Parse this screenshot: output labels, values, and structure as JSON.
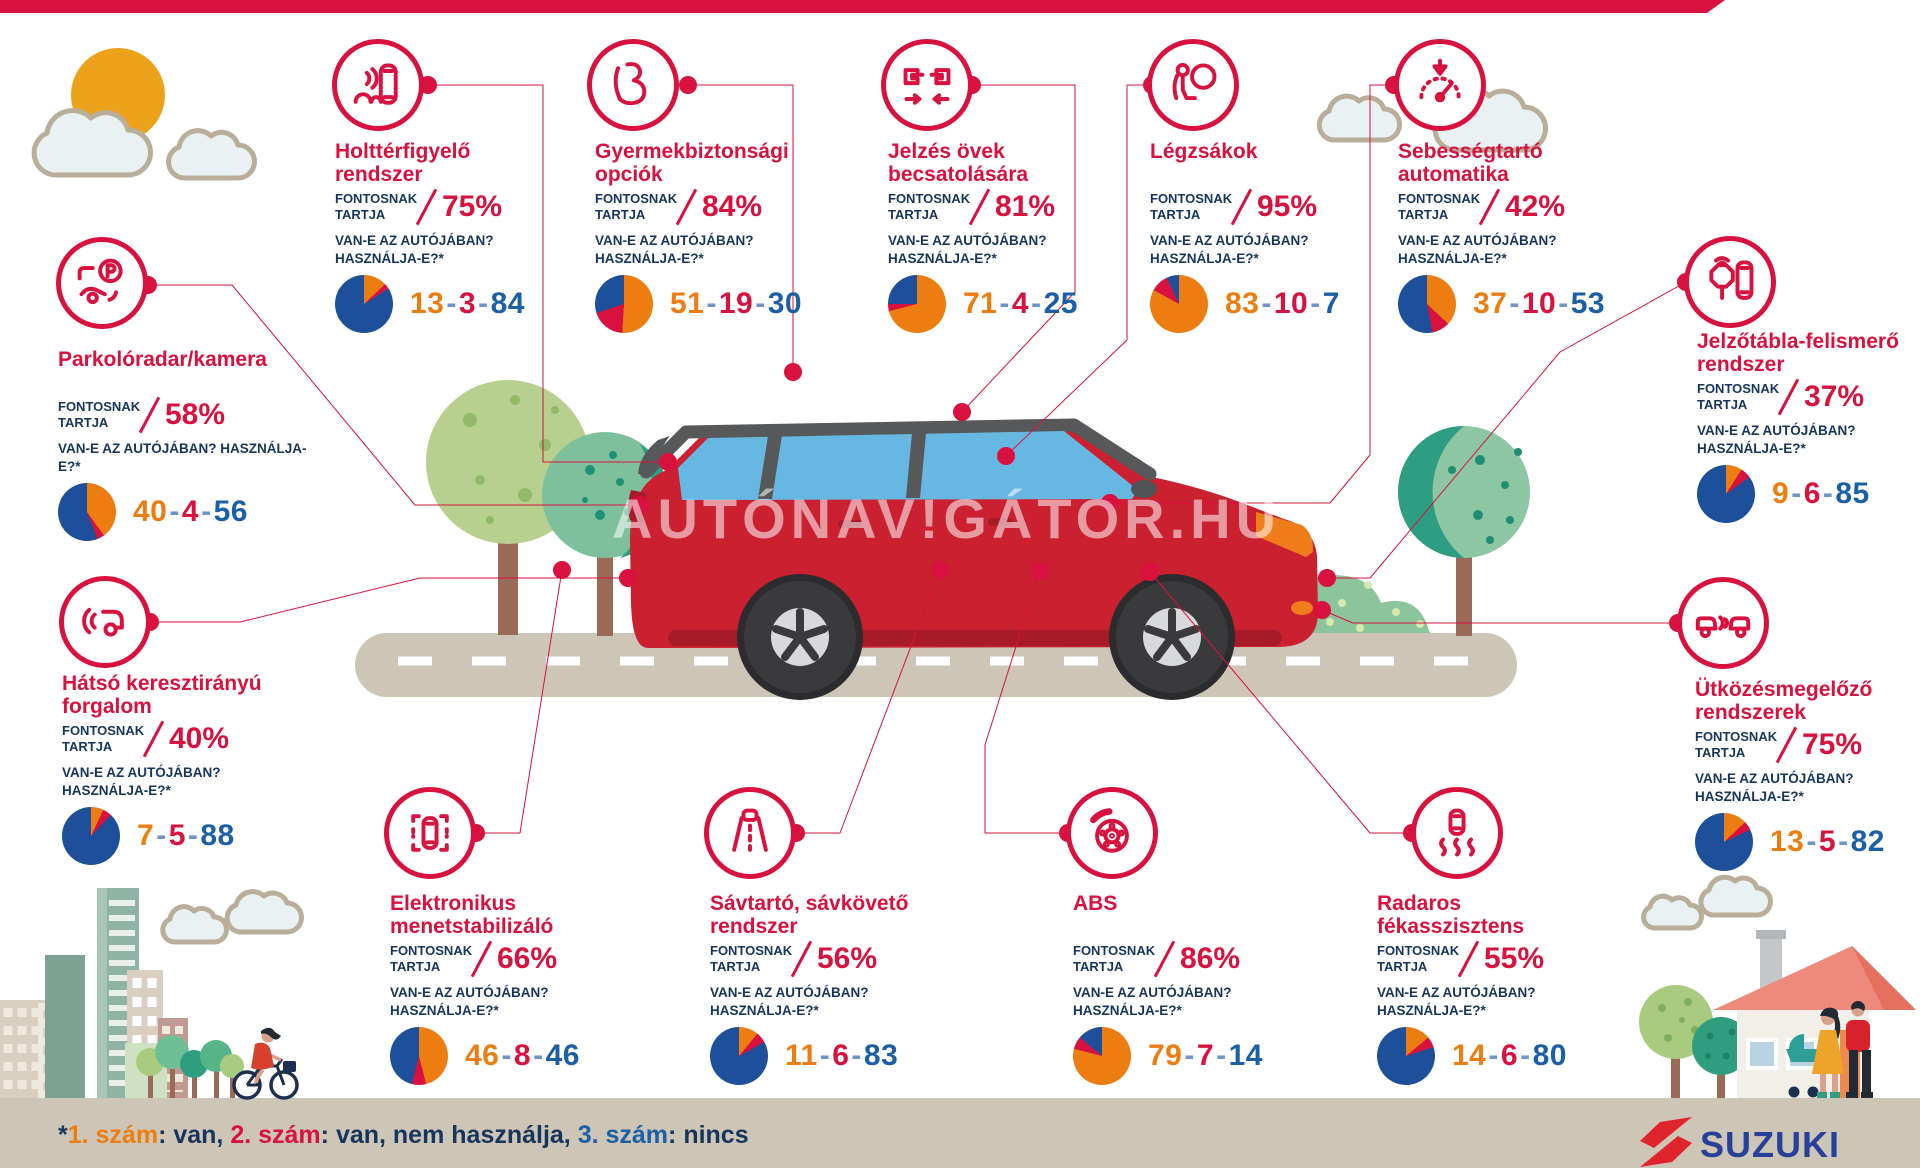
{
  "palette": {
    "crimson": "#d8113e",
    "navy": "#17355c",
    "orange": "#ee7d11",
    "blue": "#1b5fa6",
    "pie_blue": "#1d4f9a",
    "beige": "#cdc5b6",
    "suzuki_blue": "#27409a",
    "suzuki_red": "#e0242e"
  },
  "watermark": "AUTÓNAV!GÁTOR.HU",
  "brand": {
    "logo_text": "SUZUKI"
  },
  "labels": {
    "importance": "FONTOSNAK TARTJA",
    "question": "VAN-E AZ AUTÓJÁBAN? HASZNÁLJA-E?*",
    "sep": "-"
  },
  "legend": {
    "star": "*",
    "n1": "1. szám",
    "t1": ": van, ",
    "n2": "2. szám",
    "t2": ": van, nem használja, ",
    "n3": "3. szám",
    "t3": ": nincs"
  },
  "callouts": [
    {
      "id": "blind-spot",
      "title": "Holttérfigyelő rendszer",
      "icon": "blind-spot-monitor-icon",
      "importance_pct": "75%",
      "values": {
        "van": 13,
        "van_nem_hasznalja": 3,
        "nincs": 84
      }
    },
    {
      "id": "child-safety",
      "title": "Gyermekbiztonsági opciók",
      "icon": "child-seat-icon",
      "importance_pct": "84%",
      "values": {
        "van": 51,
        "van_nem_hasznalja": 19,
        "nincs": 30
      }
    },
    {
      "id": "seatbelt-reminder",
      "title": "Jelzés övek becsatolására",
      "icon": "seatbelt-reminder-icon",
      "importance_pct": "81%",
      "values": {
        "van": 71,
        "van_nem_hasznalja": 4,
        "nincs": 25
      }
    },
    {
      "id": "airbags",
      "title": "Légzsákok",
      "icon": "airbag-icon",
      "importance_pct": "95%",
      "values": {
        "van": 83,
        "van_nem_hasznalja": 10,
        "nincs": 7
      }
    },
    {
      "id": "cruise-control",
      "title": "Sebességtartó automatika",
      "icon": "cruise-control-icon",
      "importance_pct": "42%",
      "values": {
        "van": 37,
        "van_nem_hasznalja": 10,
        "nincs": 53
      }
    },
    {
      "id": "sign-recognition",
      "title": "Jelzőtábla-felismerő rendszer",
      "icon": "traffic-sign-recognition-icon",
      "importance_pct": "37%",
      "values": {
        "van": 9,
        "van_nem_hasznalja": 6,
        "nincs": 85
      }
    },
    {
      "id": "parking-radar",
      "title": "Parkolóradar/kamera",
      "icon": "parking-sensor-icon",
      "importance_pct": "58%",
      "values": {
        "van": 40,
        "van_nem_hasznalja": 4,
        "nincs": 56
      }
    },
    {
      "id": "rear-cross-traffic",
      "title": "Hátsó keresztirányú forgalom",
      "icon": "rear-cross-traffic-icon",
      "importance_pct": "40%",
      "values": {
        "van": 7,
        "van_nem_hasznalja": 5,
        "nincs": 88
      }
    },
    {
      "id": "collision-avoidance",
      "title": "Ütközésmegelőző rendszerek",
      "icon": "collision-avoidance-icon",
      "importance_pct": "75%",
      "values": {
        "van": 13,
        "van_nem_hasznalja": 5,
        "nincs": 82
      }
    },
    {
      "id": "esc",
      "title": "Elektronikus menetstabilizáló",
      "icon": "esc-icon",
      "importance_pct": "66%",
      "values": {
        "van": 46,
        "van_nem_hasznalja": 8,
        "nincs": 46
      }
    },
    {
      "id": "lane-keep",
      "title": "Sávtartó, sávkövető rendszer",
      "icon": "lane-keep-icon",
      "importance_pct": "56%",
      "values": {
        "van": 11,
        "van_nem_hasznalja": 6,
        "nincs": 83
      }
    },
    {
      "id": "abs",
      "title": "ABS",
      "icon": "abs-icon",
      "importance_pct": "86%",
      "values": {
        "van": 79,
        "van_nem_hasznalja": 7,
        "nincs": 14
      }
    },
    {
      "id": "radar-brake",
      "title": "Radaros fékasszisztens",
      "icon": "radar-brake-assist-icon",
      "importance_pct": "55%",
      "values": {
        "van": 14,
        "van_nem_hasznalja": 6,
        "nincs": 80
      }
    }
  ],
  "chart_data": {
    "type": "pie",
    "title": "",
    "unit": "%",
    "legend": {
      "1. szám": "van",
      "2. szám": "van, nem használja",
      "3. szám": "nincs"
    },
    "slice_order": [
      "van",
      "van_nem_hasznalja",
      "nincs"
    ],
    "features": [
      {
        "name": "Holttérfigyelő rendszer",
        "importance_pct": 75,
        "van": 13,
        "van_nem_hasznalja": 3,
        "nincs": 84
      },
      {
        "name": "Gyermekbiztonsági opciók",
        "importance_pct": 84,
        "van": 51,
        "van_nem_hasznalja": 19,
        "nincs": 30
      },
      {
        "name": "Jelzés övek becsatolására",
        "importance_pct": 81,
        "van": 71,
        "van_nem_hasznalja": 4,
        "nincs": 25
      },
      {
        "name": "Légzsákok",
        "importance_pct": 95,
        "van": 83,
        "van_nem_hasznalja": 10,
        "nincs": 7
      },
      {
        "name": "Sebességtartó automatika",
        "importance_pct": 42,
        "van": 37,
        "van_nem_hasznalja": 10,
        "nincs": 53
      },
      {
        "name": "Jelzőtábla-felismerő rendszer",
        "importance_pct": 37,
        "van": 9,
        "van_nem_hasznalja": 6,
        "nincs": 85
      },
      {
        "name": "Parkolóradar/kamera",
        "importance_pct": 58,
        "van": 40,
        "van_nem_hasznalja": 4,
        "nincs": 56
      },
      {
        "name": "Hátsó keresztirányú forgalom",
        "importance_pct": 40,
        "van": 7,
        "van_nem_hasznalja": 5,
        "nincs": 88
      },
      {
        "name": "Ütközésmegelőző rendszerek",
        "importance_pct": 75,
        "van": 13,
        "van_nem_hasznalja": 5,
        "nincs": 82
      },
      {
        "name": "Elektronikus menetstabilizáló",
        "importance_pct": 66,
        "van": 46,
        "van_nem_hasznalja": 8,
        "nincs": 46
      },
      {
        "name": "Sávtartó, sávkövető rendszer",
        "importance_pct": 56,
        "van": 11,
        "van_nem_hasznalja": 6,
        "nincs": 83
      },
      {
        "name": "ABS",
        "importance_pct": 86,
        "van": 79,
        "van_nem_hasznalja": 7,
        "nincs": 14
      },
      {
        "name": "Radaros fékasszisztens",
        "importance_pct": 55,
        "van": 14,
        "van_nem_hasznalja": 6,
        "nincs": 80
      }
    ]
  }
}
